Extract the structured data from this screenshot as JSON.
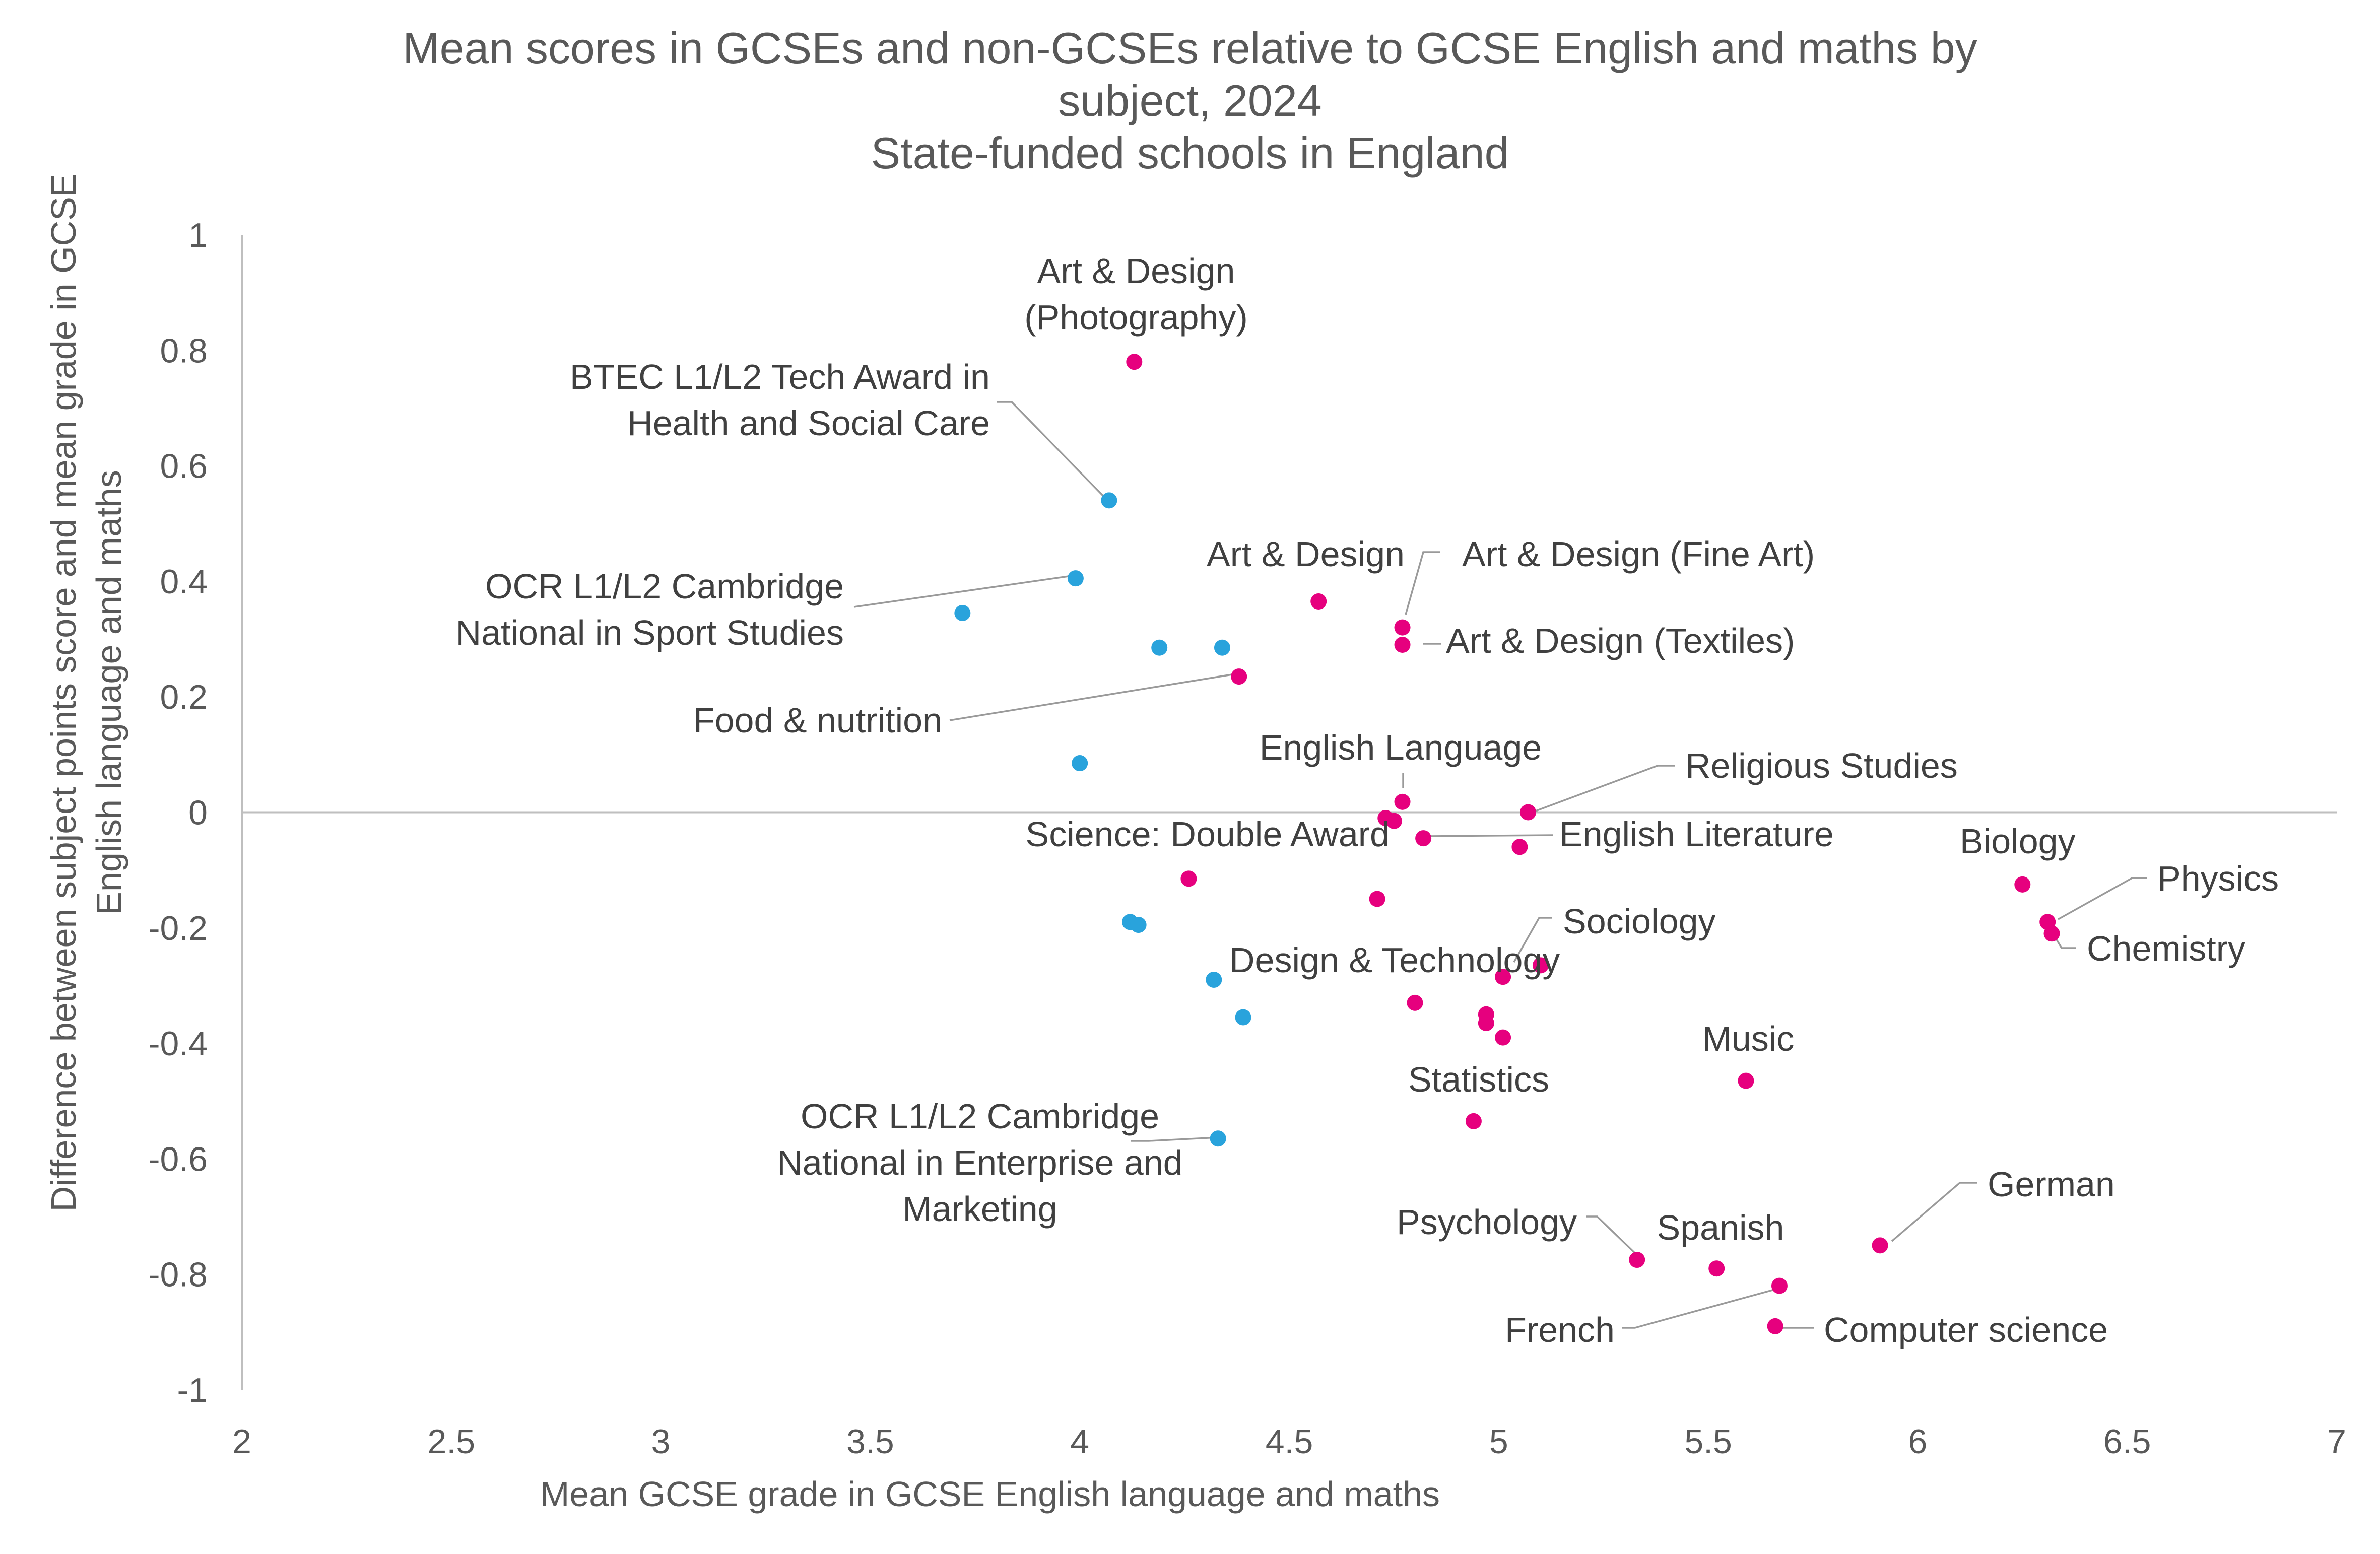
{
  "chart_data": {
    "type": "scatter",
    "title": "Mean scores in GCSEs and non-GCSEs relative to GCSE English and maths by subject, 2024",
    "title_lines": [
      "Mean scores in GCSEs and non-GCSEs relative to GCSE English and maths by",
      "subject, 2024"
    ],
    "subtitle": "State-funded schools in England",
    "xlabel": "Mean GCSE grade in GCSE English language and maths",
    "ylabel_lines": [
      "Difference between subject points score and mean grade in GCSE",
      "English language and maths"
    ],
    "xlim": [
      2,
      7
    ],
    "ylim": [
      -1,
      1
    ],
    "x_ticks": [
      {
        "value": 2,
        "label": "2"
      },
      {
        "value": 2.5,
        "label": "2.5"
      },
      {
        "value": 3,
        "label": "3"
      },
      {
        "value": 3.5,
        "label": "3.5"
      },
      {
        "value": 4,
        "label": "4"
      },
      {
        "value": 4.5,
        "label": "4.5"
      },
      {
        "value": 5,
        "label": "5"
      },
      {
        "value": 5.5,
        "label": "5.5"
      },
      {
        "value": 6,
        "label": "6"
      },
      {
        "value": 6.5,
        "label": "6.5"
      },
      {
        "value": 7,
        "label": "7"
      }
    ],
    "y_ticks": [
      {
        "value": 1,
        "label": "1"
      },
      {
        "value": 0.8,
        "label": "0.8"
      },
      {
        "value": 0.6,
        "label": "0.6"
      },
      {
        "value": 0.4,
        "label": "0.4"
      },
      {
        "value": 0.2,
        "label": "0.2"
      },
      {
        "value": 0,
        "label": "0"
      },
      {
        "value": -0.2,
        "label": "-0.2"
      },
      {
        "value": -0.4,
        "label": "-0.4"
      },
      {
        "value": -0.6,
        "label": "-0.6"
      },
      {
        "value": -0.8,
        "label": "-0.8"
      },
      {
        "value": -1,
        "label": "-1"
      }
    ],
    "grid": false,
    "legend": "none",
    "colors": {
      "gcse": "#e6007e",
      "non_gcse": "#29a3dc",
      "text": "#595959",
      "axis": "#bfbfbf",
      "leader": "#9a9a9a"
    },
    "series": [
      {
        "color": "#e6007e",
        "points": [
          {
            "x": 4.13,
            "y": 0.78
          },
          {
            "x": 4.57,
            "y": 0.365
          },
          {
            "x": 4.77,
            "y": 0.32
          },
          {
            "x": 4.77,
            "y": 0.29
          },
          {
            "x": 4.38,
            "y": 0.235
          },
          {
            "x": 4.77,
            "y": 0.018
          },
          {
            "x": 5.07,
            "y": 0.0
          },
          {
            "x": 4.73,
            "y": -0.01
          },
          {
            "x": 4.75,
            "y": -0.015
          },
          {
            "x": 4.82,
            "y": -0.045
          },
          {
            "x": 5.05,
            "y": -0.06
          },
          {
            "x": 4.26,
            "y": -0.115
          },
          {
            "x": 4.71,
            "y": -0.15
          },
          {
            "x": 5.01,
            "y": -0.285
          },
          {
            "x": 5.1,
            "y": -0.265
          },
          {
            "x": 4.8,
            "y": -0.33
          },
          {
            "x": 4.97,
            "y": -0.35
          },
          {
            "x": 4.97,
            "y": -0.365
          },
          {
            "x": 5.01,
            "y": -0.39
          },
          {
            "x": 4.94,
            "y": -0.535
          },
          {
            "x": 5.59,
            "y": -0.465
          },
          {
            "x": 6.25,
            "y": -0.125
          },
          {
            "x": 6.31,
            "y": -0.19
          },
          {
            "x": 6.32,
            "y": -0.21
          },
          {
            "x": 5.91,
            "y": -0.75
          },
          {
            "x": 5.33,
            "y": -0.775
          },
          {
            "x": 5.52,
            "y": -0.79
          },
          {
            "x": 5.67,
            "y": -0.82
          },
          {
            "x": 5.66,
            "y": -0.89
          }
        ]
      },
      {
        "color": "#29a3dc",
        "points": [
          {
            "x": 4.07,
            "y": 0.54
          },
          {
            "x": 3.99,
            "y": 0.405
          },
          {
            "x": 3.72,
            "y": 0.345
          },
          {
            "x": 4.19,
            "y": 0.285
          },
          {
            "x": 4.34,
            "y": 0.285
          },
          {
            "x": 4.0,
            "y": 0.085
          },
          {
            "x": 4.12,
            "y": -0.19
          },
          {
            "x": 4.14,
            "y": -0.195
          },
          {
            "x": 4.32,
            "y": -0.29
          },
          {
            "x": 4.39,
            "y": -0.355
          },
          {
            "x": 4.33,
            "y": -0.565
          }
        ]
      }
    ],
    "annotations": [
      {
        "lines": [
          "Art & Design",
          "(Photography)"
        ]
      },
      {
        "lines": [
          "BTEC L1/L2 Tech Award in",
          "Health and Social Care"
        ]
      },
      {
        "lines": [
          "OCR L1/L2 Cambridge",
          "National in Sport Studies"
        ]
      },
      {
        "lines": [
          "Food & nutrition"
        ]
      },
      {
        "lines": [
          "Art & Design"
        ]
      },
      {
        "lines": [
          "Art & Design (Fine Art)"
        ]
      },
      {
        "lines": [
          "Art & Design (Textiles)"
        ]
      },
      {
        "lines": [
          "English Language"
        ]
      },
      {
        "lines": [
          "Religious Studies"
        ]
      },
      {
        "lines": [
          "Science: Double Award"
        ]
      },
      {
        "lines": [
          "English Literature"
        ]
      },
      {
        "lines": [
          "Sociology"
        ]
      },
      {
        "lines": [
          "Design & Technology"
        ]
      },
      {
        "lines": [
          "Biology"
        ]
      },
      {
        "lines": [
          "Physics"
        ]
      },
      {
        "lines": [
          "Chemistry"
        ]
      },
      {
        "lines": [
          "Music"
        ]
      },
      {
        "lines": [
          "Statistics"
        ]
      },
      {
        "lines": [
          "OCR L1/L2 Cambridge",
          "National in Enterprise and",
          "Marketing"
        ]
      },
      {
        "lines": [
          "German"
        ]
      },
      {
        "lines": [
          "Psychology"
        ]
      },
      {
        "lines": [
          "Spanish"
        ]
      },
      {
        "lines": [
          "French"
        ]
      },
      {
        "lines": [
          "Computer science"
        ]
      }
    ]
  }
}
